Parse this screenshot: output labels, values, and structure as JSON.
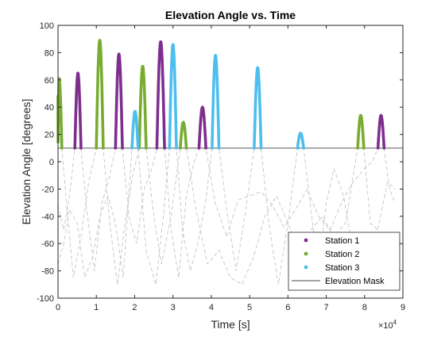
{
  "chart_data": {
    "type": "scatter",
    "title": "Elevation Angle vs. Time",
    "xlabel": "Time [s]",
    "ylabel": "Elevation Angle [degrees]",
    "x_exponent_label": "×10",
    "x_exponent_power": "4",
    "xlim": [
      0,
      90000
    ],
    "ylim": [
      -100,
      100
    ],
    "x_ticks": [
      0,
      10000,
      20000,
      30000,
      40000,
      50000,
      60000,
      70000,
      80000,
      90000
    ],
    "x_tick_labels": [
      "0",
      "1",
      "2",
      "3",
      "4",
      "5",
      "6",
      "7",
      "8",
      "9"
    ],
    "y_ticks": [
      -100,
      -80,
      -60,
      -40,
      -20,
      0,
      20,
      40,
      60,
      80,
      100
    ],
    "y_tick_labels": [
      "-100",
      "-80",
      "-60",
      "-40",
      "-20",
      "0",
      "20",
      "40",
      "60",
      "80",
      "100"
    ],
    "grid": false,
    "legend_position": "bottom-right",
    "elevation_mask": 10,
    "below_mask_style": {
      "color": "#bdbdbd",
      "dash": "dashed"
    },
    "series": [
      {
        "name": "Station 1",
        "color": "#7E2F8E",
        "passes": [
          {
            "start": 4400,
            "peak_time": 5200,
            "end": 6000,
            "peak": 65
          },
          {
            "start": 15000,
            "peak_time": 15900,
            "end": 16800,
            "peak": 79
          },
          {
            "start": 25800,
            "peak_time": 26800,
            "end": 27800,
            "peak": 88
          },
          {
            "start": 36800,
            "peak_time": 37700,
            "end": 38600,
            "peak": 40
          },
          {
            "start": 83500,
            "peak_time": 84300,
            "end": 85100,
            "peak": 34
          }
        ]
      },
      {
        "name": "Station 2",
        "color": "#77AC30",
        "passes": [
          {
            "start": 0,
            "peak_time": 300,
            "end": 1000,
            "peak": 61
          },
          {
            "start": 10000,
            "peak_time": 10900,
            "end": 11800,
            "peak": 89
          },
          {
            "start": 21200,
            "peak_time": 22100,
            "end": 23000,
            "peak": 70
          },
          {
            "start": 31900,
            "peak_time": 32700,
            "end": 33500,
            "peak": 29
          },
          {
            "start": 78200,
            "peak_time": 79000,
            "end": 79800,
            "peak": 34
          }
        ]
      },
      {
        "name": "Station 3",
        "color": "#4DBEEE",
        "passes": [
          {
            "start": 19300,
            "peak_time": 20100,
            "end": 20900,
            "peak": 37
          },
          {
            "start": 29100,
            "peak_time": 30000,
            "end": 30900,
            "peak": 86
          },
          {
            "start": 40200,
            "peak_time": 41100,
            "end": 42000,
            "peak": 78
          },
          {
            "start": 51200,
            "peak_time": 52100,
            "end": 53000,
            "peak": 69
          },
          {
            "start": 62500,
            "peak_time": 63300,
            "end": 64100,
            "peak": 21
          }
        ]
      },
      {
        "name": "Elevation Mask",
        "color": "#444444",
        "values": [
          10
        ]
      }
    ],
    "below_mask_tracks": [
      {
        "station": "Station 1",
        "points": [
          [
            0,
            -32
          ],
          [
            1500,
            -50
          ],
          [
            3000,
            -25
          ],
          [
            4400,
            10
          ],
          [
            6000,
            10
          ],
          [
            7500,
            -35
          ],
          [
            9500,
            -80
          ],
          [
            11500,
            -30
          ],
          [
            13500,
            -10
          ],
          [
            15000,
            10
          ],
          [
            16800,
            10
          ],
          [
            18500,
            -40
          ],
          [
            20500,
            -60
          ],
          [
            22500,
            -20
          ],
          [
            24500,
            -5
          ],
          [
            25800,
            10
          ],
          [
            27800,
            10
          ],
          [
            29500,
            -50
          ],
          [
            31500,
            -85
          ],
          [
            33500,
            -25
          ],
          [
            35500,
            0
          ],
          [
            36800,
            10
          ],
          [
            38600,
            10
          ],
          [
            41000,
            -30
          ],
          [
            44000,
            -55
          ],
          [
            47000,
            -28
          ],
          [
            50000,
            -25
          ],
          [
            53000,
            -22
          ],
          [
            56000,
            -32
          ],
          [
            59000,
            -48
          ],
          [
            62000,
            -35
          ],
          [
            65000,
            -20
          ],
          [
            68000,
            -40
          ],
          [
            71000,
            -50
          ],
          [
            74000,
            -30
          ],
          [
            77000,
            -15
          ],
          [
            80000,
            -5
          ],
          [
            82000,
            0
          ],
          [
            83500,
            10
          ],
          [
            85100,
            10
          ],
          [
            86500,
            -20
          ],
          [
            88000,
            -30
          ]
        ]
      },
      {
        "station": "Station 2",
        "points": [
          [
            1000,
            10
          ],
          [
            2500,
            -40
          ],
          [
            4000,
            -85
          ],
          [
            6000,
            -55
          ],
          [
            8000,
            -15
          ],
          [
            10000,
            10
          ],
          [
            11800,
            10
          ],
          [
            13500,
            -45
          ],
          [
            15500,
            -90
          ],
          [
            17500,
            -45
          ],
          [
            19500,
            -10
          ],
          [
            21200,
            10
          ],
          [
            23000,
            10
          ],
          [
            25000,
            -40
          ],
          [
            27000,
            -75
          ],
          [
            29500,
            -40
          ],
          [
            31900,
            10
          ],
          [
            33500,
            10
          ],
          [
            36000,
            -35
          ],
          [
            39000,
            -75
          ],
          [
            42000,
            -65
          ],
          [
            45000,
            -85
          ],
          [
            48000,
            -90
          ],
          [
            51000,
            -70
          ],
          [
            54000,
            -40
          ],
          [
            57000,
            -25
          ],
          [
            60000,
            -45
          ],
          [
            63000,
            -65
          ],
          [
            66000,
            -50
          ],
          [
            69000,
            -40
          ],
          [
            72000,
            -55
          ],
          [
            75000,
            -45
          ],
          [
            78200,
            10
          ],
          [
            79800,
            10
          ],
          [
            81500,
            -45
          ],
          [
            83500,
            -50
          ]
        ]
      },
      {
        "station": "Station 3",
        "points": [
          [
            0,
            -75
          ],
          [
            1500,
            -60
          ],
          [
            3000,
            -35
          ],
          [
            5000,
            -45
          ],
          [
            7000,
            -85
          ],
          [
            9000,
            -70
          ],
          [
            11000,
            -40
          ],
          [
            13000,
            -25
          ],
          [
            15000,
            -45
          ],
          [
            17000,
            -85
          ],
          [
            19300,
            10
          ],
          [
            20900,
            10
          ],
          [
            23000,
            -65
          ],
          [
            25500,
            -90
          ],
          [
            27500,
            -40
          ],
          [
            29100,
            10
          ],
          [
            30900,
            10
          ],
          [
            32500,
            -50
          ],
          [
            34500,
            -80
          ],
          [
            36500,
            -60
          ],
          [
            38500,
            -30
          ],
          [
            40200,
            10
          ],
          [
            42000,
            10
          ],
          [
            44000,
            -35
          ],
          [
            46500,
            -80
          ],
          [
            49000,
            -35
          ],
          [
            51200,
            10
          ],
          [
            53000,
            10
          ],
          [
            55000,
            -45
          ],
          [
            57500,
            -90
          ],
          [
            60000,
            -45
          ],
          [
            62500,
            10
          ],
          [
            64100,
            10
          ],
          [
            66000,
            -35
          ],
          [
            68000,
            -80
          ],
          [
            70000,
            -30
          ],
          [
            72000,
            -5
          ],
          [
            74500,
            -25
          ],
          [
            77000,
            -65
          ],
          [
            79500,
            -80
          ],
          [
            82000,
            -70
          ],
          [
            84500,
            -35
          ],
          [
            86000,
            -15
          ],
          [
            88000,
            -20
          ]
        ]
      }
    ]
  }
}
